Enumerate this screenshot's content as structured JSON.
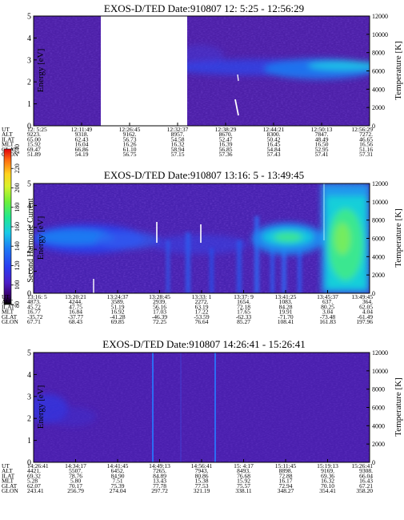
{
  "chart_data": [
    {
      "type": "heatmap",
      "title": "EXOS-D/TED   Date:910807  12: 5:25 - 12:56:29",
      "ylabel": "Energy [eV]",
      "y2label": "Temperature [K]",
      "ylim": [
        0,
        5
      ],
      "y_ticks": [
        "0",
        "1",
        "2",
        "3",
        "4",
        "5"
      ],
      "y2lim": [
        0,
        12000
      ],
      "y2_ticks": [
        "0",
        "2000",
        "4000",
        "6000",
        "8000",
        "10000",
        "12000"
      ],
      "data_gap": [
        "12:11:49",
        "12:26:45"
      ],
      "ephemeris": {
        "labels": [
          "UT",
          "ALT",
          "ILAT",
          "MLT",
          "GLAT",
          "GLON"
        ],
        "columns": [
          [
            "12: 5:25",
            "9223.",
            "65.00",
            "15.92",
            "69.47",
            "51.89"
          ],
          [
            "12:11:49",
            "9318.",
            "62.43",
            "16.04",
            "66.86",
            "54.19"
          ],
          [
            "12:26:45",
            "9162.",
            "56.73",
            "16.26",
            "61.10",
            "56.75"
          ],
          [
            "12:32:37",
            "8957.",
            "54.58",
            "16.32",
            "58.94",
            "57.15"
          ],
          [
            "12:38:29",
            "8670.",
            "52.47",
            "16.39",
            "56.85",
            "57.36"
          ],
          [
            "12:44:21",
            "8300.",
            "50.42",
            "16.45",
            "54.84",
            "57.43"
          ],
          [
            "12:50:13",
            "7847.",
            "48.49",
            "16.50",
            "52.95",
            "57.41"
          ],
          [
            "12:56:29",
            "7272.",
            "46.65",
            "16.56",
            "51.16",
            "57.31"
          ]
        ]
      }
    },
    {
      "type": "heatmap",
      "title": "EXOS-D/TED   Date:910807  13:16: 5 - 13:49:45",
      "ylabel": "Energy [eV]",
      "y2label": "Temperature [K]",
      "ylim": [
        0,
        5
      ],
      "y_ticks": [
        "0",
        "1",
        "2",
        "3",
        "4",
        "5"
      ],
      "y2lim": [
        0,
        12000
      ],
      "y2_ticks": [
        "0",
        "2000",
        "4000",
        "6000",
        "8000",
        "10000",
        "12000"
      ],
      "colorbar": {
        "label": "Second Harmonic Current",
        "ticks": [
          "80",
          "100",
          "120",
          "140",
          "160",
          "180",
          "200",
          "220",
          "240"
        ]
      },
      "ephemeris": {
        "labels": [
          "UT",
          "ALT",
          "ILAT",
          "MLT",
          "GLAT",
          "GLON"
        ],
        "columns": [
          [
            "13:16: 5",
            "4873.",
            "45.72",
            "16.77",
            "-35.72",
            "67.71"
          ],
          [
            "13:20:21",
            "4244.",
            "47.75",
            "16.84",
            "-37.77",
            "68.43"
          ],
          [
            "13:24:37",
            "3589.",
            "51.19",
            "16.92",
            "-41.28",
            "69.85"
          ],
          [
            "13:28:45",
            "2939.",
            "56.16",
            "17.03",
            "-46.39",
            "72.25"
          ],
          [
            "13:33: 1",
            "2272.",
            "63.19",
            "17.22",
            "-53.59",
            "76.64"
          ],
          [
            "13:37: 9",
            "1654.",
            "72.18",
            "17.65",
            "-62.33",
            "85.27"
          ],
          [
            "13:41:25",
            "1083.",
            "84.28",
            "19.91",
            "-71.70",
            "108.41"
          ],
          [
            "13:45:37",
            "637.",
            "80.25",
            "3.04",
            "-73.48",
            "161.83"
          ],
          [
            "13:49:45",
            "364.",
            "62.05",
            "4.04",
            "-61.49",
            "197.96"
          ]
        ]
      }
    },
    {
      "type": "heatmap",
      "title": "EXOS-D/TED   Date:910807  14:26:41 - 15:26:41",
      "ylabel": "Energy [eV]",
      "y2label": "Temperature [K]",
      "ylim": [
        0,
        5
      ],
      "y_ticks": [
        "0",
        "1",
        "2",
        "3",
        "4",
        "5"
      ],
      "y2lim": [
        0,
        12000
      ],
      "y2_ticks": [
        "0",
        "2000",
        "4000",
        "6000",
        "8000",
        "10000",
        "12000"
      ],
      "ephemeris": {
        "labels": [
          "UT",
          "ALT",
          "ILAT",
          "MLT",
          "GLAT",
          "GLON"
        ],
        "columns": [
          [
            "14:26:41",
            "4421.",
            "69.32",
            "5.28",
            "62.07",
            "243.41"
          ],
          [
            "14:34:17",
            "5507.",
            "78.76",
            "5.80",
            "70.17",
            "256.79"
          ],
          [
            "14:41:45",
            "6452.",
            "84.90",
            "7.51",
            "75.39",
            "274.04"
          ],
          [
            "14:49:13",
            "7265.",
            "84.89",
            "13.43",
            "77.78",
            "297.72"
          ],
          [
            "14:56:41",
            "7943.",
            "80.86",
            "15.38",
            "77.53",
            "321.19"
          ],
          [
            "15: 4:17",
            "8493.",
            "76.68",
            "15.92",
            "75.57",
            "338.11"
          ],
          [
            "15:11:45",
            "8898.",
            "72.88",
            "16.17",
            "72.94",
            "348.27"
          ],
          [
            "15:19:13",
            "9169.",
            "69.36",
            "16.32",
            "70.10",
            "354.41"
          ],
          [
            "15:26:41",
            "9308.",
            "66.04",
            "16.43",
            "67.21",
            "358.20"
          ]
        ]
      }
    }
  ]
}
